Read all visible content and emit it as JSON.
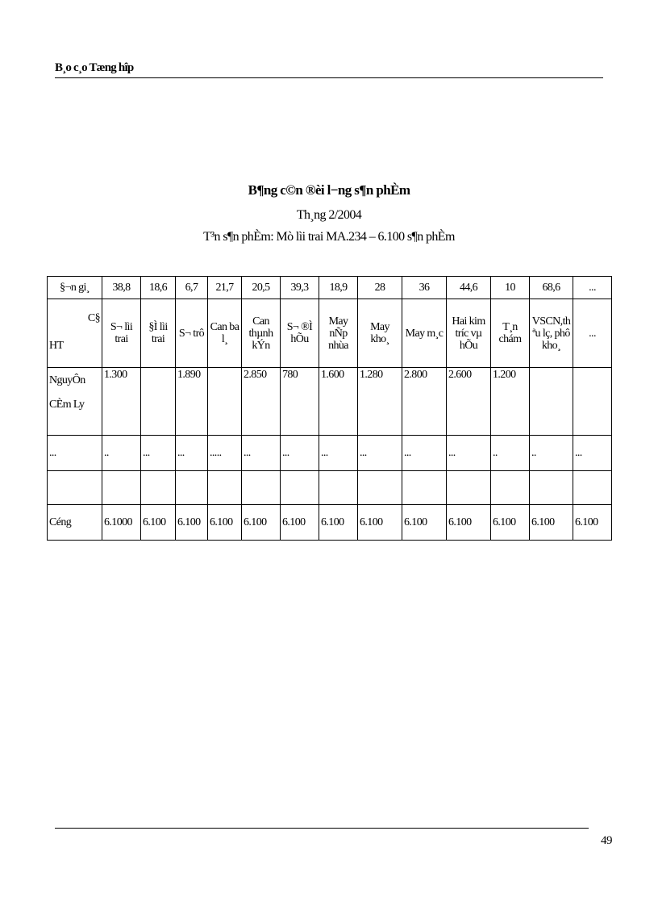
{
  "header": {
    "title": "B¸o c¸o Tæng hîp"
  },
  "titles": {
    "main": "B¶ng c©n ®èi l−ng  s¶n phÈm",
    "month": "Th¸ng 2/2004",
    "product": "T³n s¶n phÈm: Mò lìi  trai MA.234 – 6.100  s¶n phÈm"
  },
  "table": {
    "price_row": {
      "label": "§¬n gi¸",
      "values": [
        "38,8",
        "18,6",
        "6,7",
        "21,7",
        "20,5",
        "39,3",
        "18,9",
        "28",
        "36",
        "44,6",
        "10",
        "68,6",
        "..."
      ]
    },
    "corner": {
      "top": "C§",
      "bottom": "HT"
    },
    "steps": [
      "S¬ lìi trai",
      "§Ì lìi trai",
      "S¬ trô",
      "Can ba l¸",
      "Can thµnh kÝn",
      "S¬ ®Ì hÕu",
      "May nÑp nhùa",
      "May kho¸",
      "May m¸c",
      "Hai kim tríc  vµ hÕu",
      "T¸n chám",
      "VSCN,th ªu lç, phô kho¸",
      "..."
    ],
    "rows": [
      {
        "label": "NguyÔn CÈm Ly",
        "values": [
          "1.300",
          "",
          "1.890",
          "",
          "2.850",
          "780",
          "1.600",
          "1.280",
          "2.800",
          "2.600",
          "1.200",
          "",
          ""
        ]
      },
      {
        "label": "...",
        "values": [
          "..",
          "...",
          "...",
          ".....",
          "...",
          "...",
          "...",
          "...",
          "...",
          "...",
          "..",
          "..",
          "..."
        ]
      },
      {
        "label": "",
        "values": [
          "",
          "",
          "",
          "",
          "",
          "",
          "",
          "",
          "",
          "",
          "",
          "",
          ""
        ]
      }
    ],
    "total": {
      "label": "Céng",
      "values": [
        "6.1000",
        "6.100",
        "6.100",
        "6.100",
        "6.100",
        "6.100",
        "6.100",
        "6.100",
        "6.100",
        "6.100",
        "6.100",
        "6.100",
        "6.100"
      ]
    }
  },
  "footer": {
    "page_number": "49"
  }
}
